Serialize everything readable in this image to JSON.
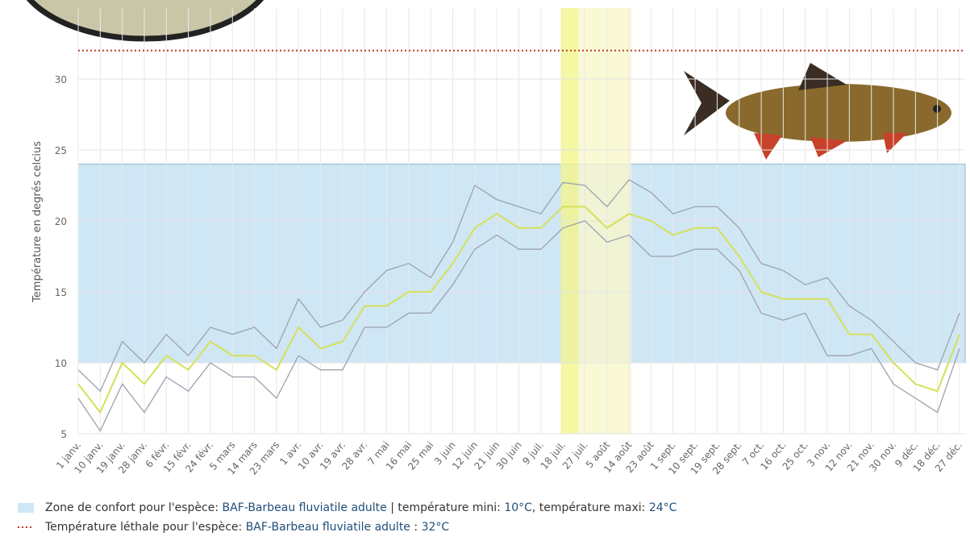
{
  "chart_data": {
    "type": "line",
    "y_label": "Température en degrés celcius",
    "categories": [
      "1 janv.",
      "10 janv.",
      "19 janv.",
      "28 janv.",
      "6 févr.",
      "15 févr.",
      "24 févr.",
      "5 mars",
      "14 mars",
      "23 mars",
      "1 avr.",
      "10 avr.",
      "19 avr.",
      "28 avr.",
      "7 mai",
      "16 mai",
      "25 mai",
      "3 juin",
      "12 juin",
      "21 juin",
      "30 juin",
      "9 juil.",
      "18 juil.",
      "27 juil.",
      "5 août",
      "14 août",
      "23 août",
      "1 sept.",
      "10 sept.",
      "19 sept.",
      "28 sept.",
      "7 oct.",
      "16 oct.",
      "25 oct.",
      "3 nov.",
      "12 nov.",
      "21 nov.",
      "30 nov.",
      "9 déc.",
      "18 déc.",
      "27 déc."
    ],
    "series": [
      {
        "color": "#d4e157",
        "values": [
          8.5,
          6.5,
          10,
          8.5,
          10.5,
          9.5,
          11.5,
          10.5,
          10.5,
          9.5,
          12.5,
          11,
          11.5,
          14,
          14,
          15,
          15,
          17,
          19.5,
          20.5,
          19.5,
          19.5,
          21,
          21,
          19.5,
          20.5,
          20,
          19,
          19.5,
          19.5,
          17.5,
          15,
          14.5,
          14.5,
          14.5,
          12,
          12,
          10,
          8.5,
          8,
          12
        ]
      },
      {
        "color": "#9aa3ad",
        "values": [
          7.5,
          5.2,
          8.5,
          6.5,
          9,
          8,
          10,
          9,
          9,
          7.5,
          10.5,
          9.5,
          9.5,
          12.5,
          12.5,
          13.5,
          13.5,
          15.5,
          18,
          19,
          18,
          18,
          19.5,
          20,
          18.5,
          19,
          17.5,
          17.5,
          18,
          18,
          16.5,
          13.5,
          13,
          13.5,
          10.5,
          10.5,
          11,
          8.5,
          7.5,
          6.5,
          11
        ]
      },
      {
        "color": "#9aa3ad",
        "values": [
          9.5,
          8,
          11.5,
          10,
          12,
          10.5,
          12.5,
          12,
          12.5,
          11,
          14.5,
          12.5,
          13,
          15,
          16.5,
          17,
          16,
          18.5,
          22.5,
          21.5,
          21,
          20.5,
          22.7,
          22.5,
          21,
          22.9,
          22,
          20.5,
          21,
          21,
          19.5,
          17,
          16.5,
          15.5,
          16,
          14,
          13,
          11.5,
          10,
          9.5,
          13.5
        ]
      }
    ],
    "ylim": [
      5,
      35
    ],
    "yticks": [
      5,
      10,
      15,
      20,
      25,
      30
    ],
    "grid": true,
    "comfort_zone": [
      10,
      24
    ],
    "comfort_color": "#cfe6f5",
    "lethal": 32,
    "lethal_color": "#c0392b",
    "highlights": [
      {
        "from": 21.9,
        "to": 22.7,
        "color": "#f3f58a"
      },
      {
        "from": 22.7,
        "to": 25.1,
        "color": "#f7f8cc"
      }
    ],
    "legend": [
      [
        "Zone de confort pour l'espèce: ",
        "BAF-Barbeau fluviatile adulte",
        " | température mini: ",
        "10°C",
        ", température maxi: ",
        "24°C"
      ],
      [
        "Température léthale pour l'espèce: ",
        "BAF-Barbeau fluviatile adulte",
        " : ",
        "32°C"
      ]
    ]
  }
}
